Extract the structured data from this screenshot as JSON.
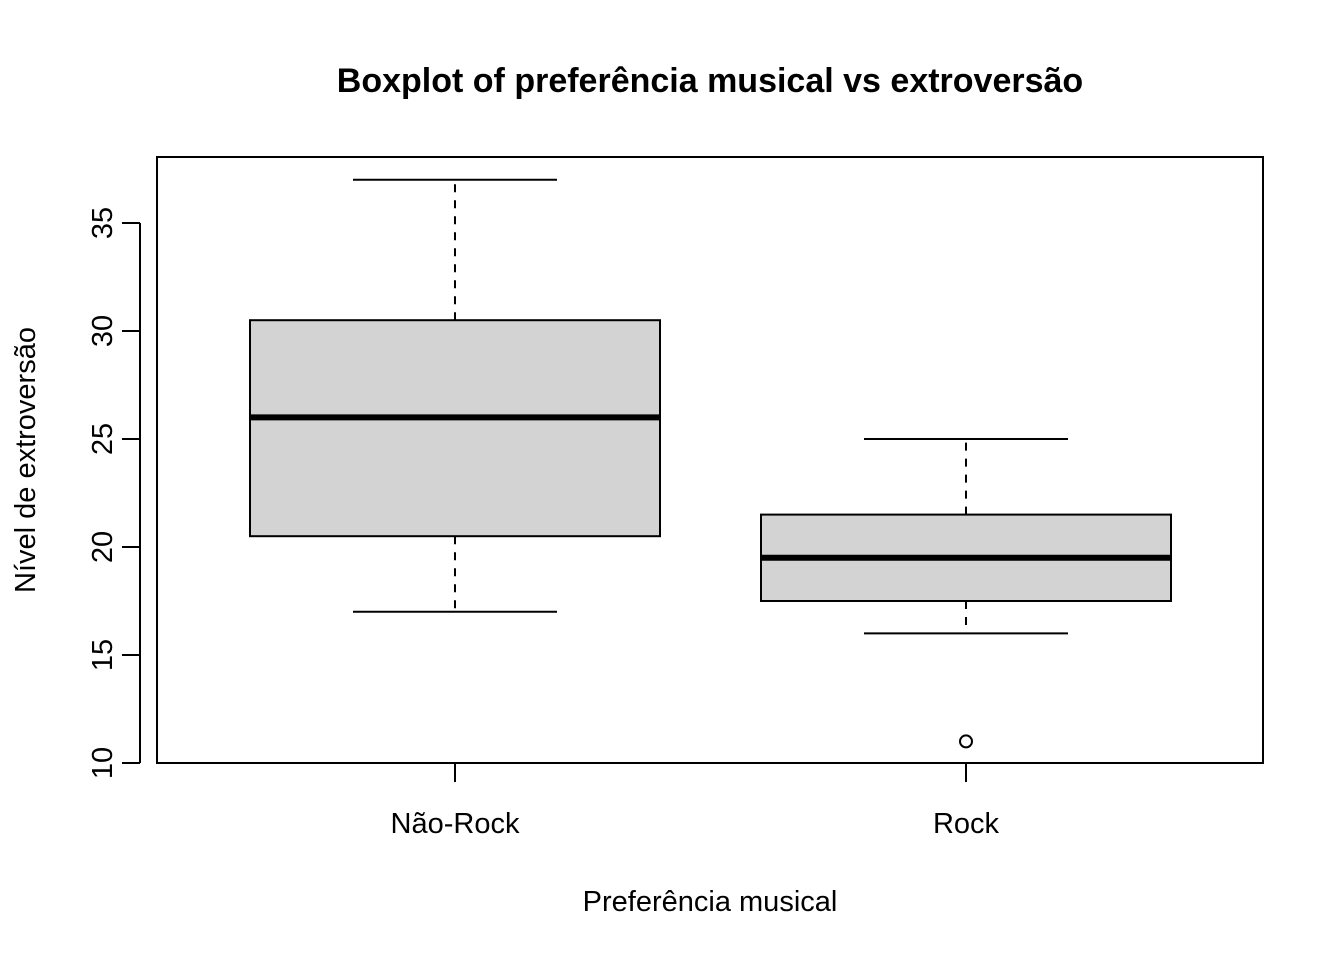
{
  "chart_data": {
    "type": "boxplot",
    "title": "Boxplot of preferência musical vs extroversão",
    "xlabel": "Preferência musical",
    "ylabel": "Nível de extroversão",
    "categories": [
      "Não-Rock",
      "Rock"
    ],
    "ylim": [
      10,
      37.5
    ],
    "yticks": [
      10,
      15,
      20,
      25,
      30,
      35
    ],
    "grid": false,
    "box_fill": "#d3d3d3",
    "line_color": "#000000",
    "boxes": [
      {
        "name": "Não-Rock",
        "whisker_low": 17,
        "q1": 20.5,
        "median": 26,
        "q3": 30.5,
        "whisker_high": 37,
        "outliers": []
      },
      {
        "name": "Rock",
        "whisker_low": 16,
        "q1": 17.5,
        "median": 19.5,
        "q3": 21.5,
        "whisker_high": 25,
        "outliers": [
          11
        ]
      }
    ]
  }
}
